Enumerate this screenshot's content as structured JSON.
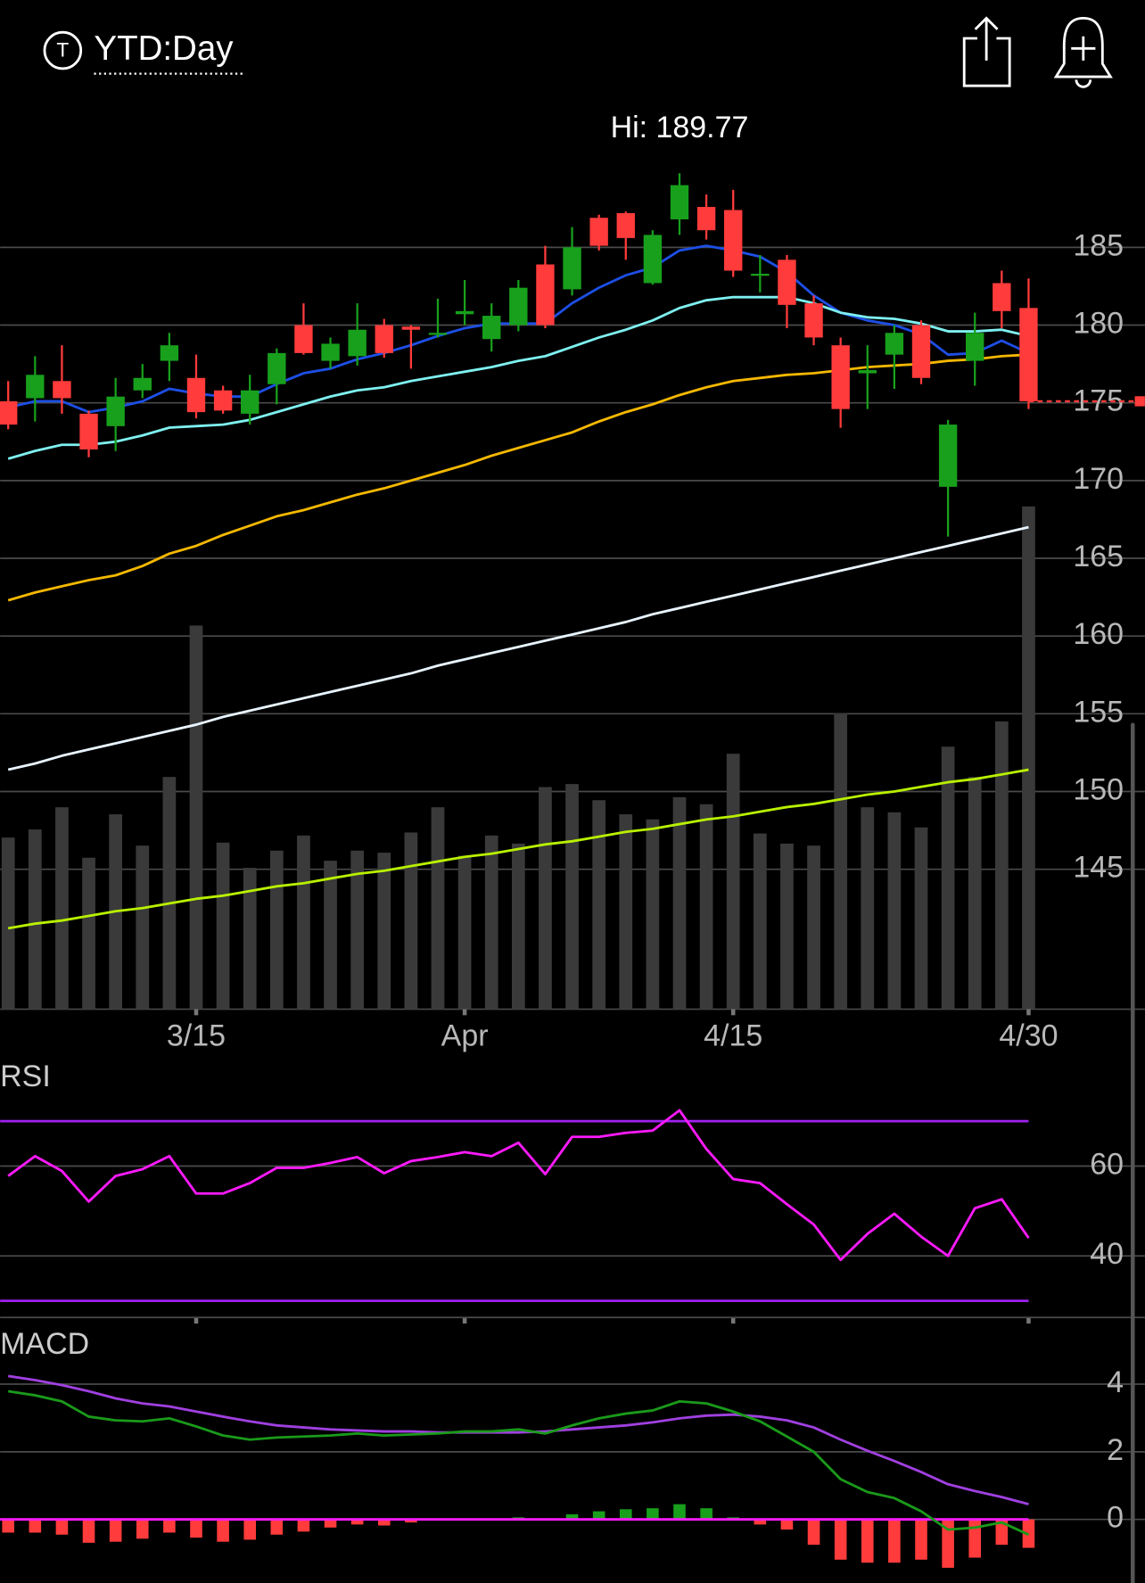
{
  "header": {
    "icon_letter": "T",
    "title": "YTD:Day"
  },
  "chart_data": [
    {
      "type": "candlestick",
      "annotation": "Hi: 189.77",
      "categories": [
        null,
        null,
        null,
        null,
        null,
        null,
        null,
        "3/15",
        null,
        null,
        null,
        null,
        null,
        null,
        null,
        null,
        null,
        "Apr",
        null,
        null,
        null,
        null,
        null,
        null,
        null,
        null,
        null,
        "4/15",
        null,
        null,
        null,
        null,
        null,
        null,
        null,
        null,
        null,
        null,
        "4/30"
      ],
      "open": [
        175.1,
        175.3,
        176.4,
        174.3,
        173.5,
        175.8,
        177.7,
        176.6,
        175.8,
        174.3,
        176.2,
        180.0,
        177.7,
        178.0,
        180.0,
        179.9,
        179.4,
        180.7,
        179.1,
        180.0,
        183.9,
        182.3,
        186.9,
        187.2,
        182.7,
        186.8,
        187.6,
        187.4,
        183.2,
        184.2,
        181.4,
        178.7,
        176.9,
        178.1,
        180.0,
        169.6,
        177.7,
        182.7,
        181.1
      ],
      "high": [
        176.4,
        178.0,
        178.7,
        174.5,
        176.6,
        177.5,
        179.5,
        178.1,
        176.1,
        176.8,
        178.5,
        181.4,
        179.2,
        181.4,
        180.4,
        180.0,
        181.7,
        182.9,
        181.4,
        182.9,
        185.1,
        186.3,
        187.1,
        187.3,
        186.1,
        189.77,
        188.4,
        188.7,
        184.5,
        184.5,
        181.9,
        179.2,
        178.7,
        180.0,
        180.3,
        173.9,
        180.8,
        183.5,
        183.0
      ],
      "low": [
        173.3,
        173.8,
        174.3,
        171.5,
        171.9,
        175.3,
        176.4,
        174.0,
        174.3,
        173.6,
        174.9,
        178.1,
        177.2,
        177.4,
        177.9,
        177.2,
        179.2,
        180.0,
        178.3,
        179.6,
        179.8,
        181.9,
        184.8,
        184.2,
        182.6,
        185.8,
        185.5,
        183.1,
        182.1,
        179.8,
        178.7,
        173.4,
        174.6,
        175.9,
        176.2,
        166.4,
        176.1,
        179.8,
        174.6
      ],
      "close": [
        173.6,
        176.8,
        175.3,
        172.0,
        175.4,
        176.6,
        178.7,
        174.4,
        174.5,
        175.8,
        178.2,
        178.2,
        178.8,
        179.7,
        178.2,
        179.7,
        179.5,
        180.9,
        180.6,
        182.4,
        180.0,
        185.0,
        185.1,
        185.6,
        185.8,
        189.0,
        186.1,
        183.5,
        183.3,
        181.3,
        179.2,
        174.6,
        177.1,
        179.5,
        176.6,
        173.6,
        179.5,
        180.9,
        175.1
      ],
      "volume": [
        170,
        178,
        200,
        150,
        193,
        162,
        230,
        380,
        165,
        140,
        157,
        172,
        147,
        157,
        155,
        175,
        200,
        152,
        172,
        164,
        220,
        223,
        207,
        193,
        188,
        210,
        203,
        253,
        174,
        164,
        162,
        293,
        200,
        195,
        180,
        260,
        230,
        285,
        498
      ],
      "up_color": "#18a01c",
      "down_color": "#ff3b3b",
      "volume_color": "#3a3a3a",
      "last_price_color": "#ff3b3b",
      "overlays": [
        {
          "color": "#1d4fe6",
          "values": [
            174.7,
            175.1,
            175.1,
            174.4,
            174.7,
            175.1,
            175.9,
            175.6,
            175.4,
            175.4,
            176.2,
            176.9,
            177.2,
            177.8,
            178.2,
            178.7,
            179.3,
            179.8,
            180.1,
            180.1,
            180.1,
            181.4,
            182.4,
            183.2,
            183.7,
            184.8,
            185.1,
            184.8,
            184.4,
            183.4,
            181.9,
            180.8,
            180.3,
            180.0,
            179.4,
            178.1,
            178.2,
            179.0,
            178.2
          ]
        },
        {
          "color": "#7ff0f0",
          "values": [
            171.4,
            171.9,
            172.3,
            172.3,
            172.5,
            172.9,
            173.4,
            173.5,
            173.6,
            173.9,
            174.4,
            174.9,
            175.4,
            175.8,
            176.0,
            176.4,
            176.7,
            177.0,
            177.3,
            177.7,
            178.0,
            178.6,
            179.2,
            179.7,
            180.3,
            181.1,
            181.6,
            181.8,
            181.8,
            181.8,
            181.4,
            180.8,
            180.5,
            180.4,
            180.1,
            179.6,
            179.6,
            179.7,
            179.3
          ]
        },
        {
          "color": "#f5b800",
          "values": [
            162.3,
            162.8,
            163.2,
            163.6,
            163.9,
            164.5,
            165.3,
            165.8,
            166.5,
            167.1,
            167.7,
            168.1,
            168.6,
            169.1,
            169.5,
            170.0,
            170.5,
            171.0,
            171.6,
            172.1,
            172.6,
            173.1,
            173.8,
            174.4,
            174.9,
            175.5,
            176.0,
            176.4,
            176.6,
            176.8,
            176.9,
            177.1,
            177.3,
            177.4,
            177.5,
            177.7,
            177.8,
            178.0,
            178.1
          ]
        },
        {
          "color": "#e8f4ff",
          "values": [
            151.4,
            151.8,
            152.3,
            152.7,
            153.1,
            153.5,
            153.9,
            154.3,
            154.8,
            155.2,
            155.6,
            156.0,
            156.4,
            156.8,
            157.2,
            157.6,
            158.1,
            158.5,
            158.9,
            159.3,
            159.7,
            160.1,
            160.5,
            160.9,
            161.4,
            161.8,
            162.2,
            162.6,
            163.0,
            163.4,
            163.8,
            164.2,
            164.6,
            165.0,
            165.4,
            165.8,
            166.2,
            166.6,
            167.0
          ]
        },
        {
          "color": "#b8f000",
          "values": [
            141.2,
            141.5,
            141.7,
            142.0,
            142.3,
            142.5,
            142.8,
            143.1,
            143.3,
            143.6,
            143.9,
            144.1,
            144.4,
            144.7,
            144.9,
            145.2,
            145.5,
            145.8,
            146.0,
            146.3,
            146.6,
            146.8,
            147.1,
            147.4,
            147.6,
            147.9,
            148.2,
            148.4,
            148.7,
            149.0,
            149.2,
            149.5,
            149.8,
            150.0,
            150.3,
            150.6,
            150.8,
            151.1,
            151.4
          ]
        }
      ],
      "ylim": [
        136,
        194
      ],
      "yticks": [
        145,
        150,
        155,
        160,
        165,
        170,
        175,
        180,
        185
      ],
      "grid": true
    },
    {
      "type": "line",
      "title": "RSI",
      "color": "#ff1aff",
      "band_color": "#a020f0",
      "bands": [
        70,
        30
      ],
      "values": [
        57.8,
        62.2,
        58.9,
        52.1,
        57.8,
        59.3,
        62.2,
        53.9,
        53.9,
        56.2,
        59.6,
        59.6,
        60.7,
        62.0,
        58.4,
        61.1,
        62.0,
        63.1,
        62.2,
        65.2,
        58.2,
        66.5,
        66.5,
        67.4,
        67.9,
        72.4,
        63.8,
        57.1,
        56.2,
        51.5,
        47.0,
        39.1,
        44.9,
        49.4,
        44.3,
        40.0,
        50.6,
        52.6,
        44.0
      ],
      "ylim": [
        26.3,
        77
      ],
      "yticks": [
        40,
        60
      ],
      "grid": true
    },
    {
      "type": "macd",
      "title": "MACD",
      "macd_color": "#1a9a1a",
      "signal_color": "#a040e0",
      "zero_color": "#ff1aff",
      "up_color": "#18a01c",
      "down_color": "#ff3b3b",
      "macd": [
        3.79,
        3.67,
        3.49,
        3.04,
        2.93,
        2.9,
        2.99,
        2.75,
        2.48,
        2.36,
        2.42,
        2.45,
        2.48,
        2.54,
        2.48,
        2.51,
        2.54,
        2.6,
        2.6,
        2.66,
        2.54,
        2.78,
        2.99,
        3.13,
        3.22,
        3.49,
        3.43,
        3.19,
        2.9,
        2.45,
        2.0,
        1.19,
        0.81,
        0.63,
        0.24,
        -0.3,
        -0.24,
        -0.09,
        -0.45
      ],
      "signal": [
        4.24,
        4.12,
        3.97,
        3.79,
        3.58,
        3.43,
        3.34,
        3.19,
        3.04,
        2.9,
        2.78,
        2.72,
        2.66,
        2.63,
        2.6,
        2.6,
        2.57,
        2.57,
        2.57,
        2.57,
        2.6,
        2.66,
        2.72,
        2.78,
        2.87,
        2.99,
        3.07,
        3.1,
        3.04,
        2.93,
        2.72,
        2.36,
        2.03,
        1.73,
        1.4,
        1.04,
        0.84,
        0.66,
        0.45
      ],
      "histogram": [
        -0.39,
        -0.39,
        -0.45,
        -0.69,
        -0.66,
        -0.57,
        -0.39,
        -0.54,
        -0.66,
        -0.6,
        -0.45,
        -0.36,
        -0.24,
        -0.15,
        -0.18,
        -0.09,
        -0.03,
        -0.03,
        0.0,
        0.06,
        0.0,
        0.15,
        0.24,
        0.3,
        0.33,
        0.45,
        0.33,
        0.06,
        -0.15,
        -0.3,
        -0.75,
        -1.19,
        -1.28,
        -1.28,
        -1.19,
        -1.43,
        -1.13,
        -0.75,
        -0.84
      ],
      "ylim": [
        -1.88,
        5.52
      ],
      "yticks": [
        0,
        2,
        4
      ],
      "grid": true
    }
  ]
}
